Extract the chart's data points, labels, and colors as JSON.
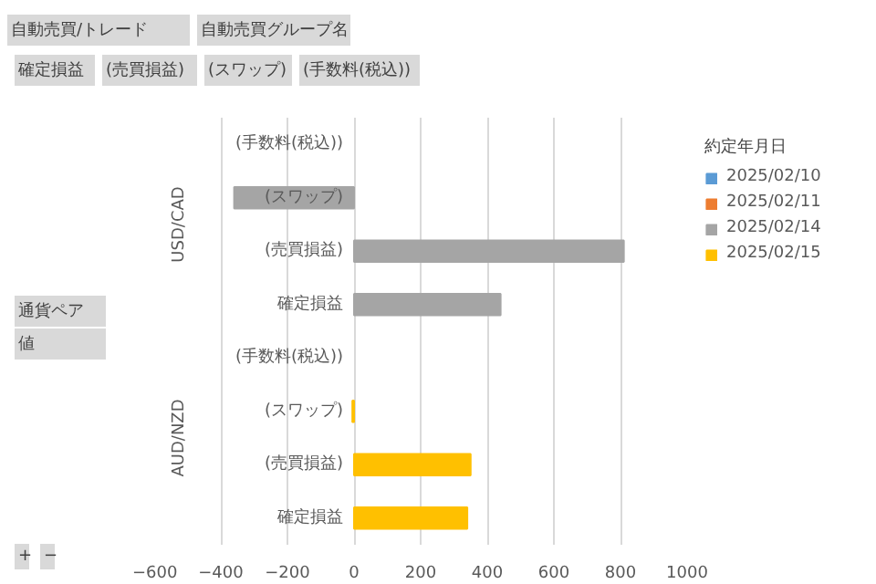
{
  "chart_data": {
    "type": "bar",
    "orientation": "horizontal",
    "stacked": true,
    "categories": [
      "(手数料(税込))",
      "(スワップ)",
      "(売買損益)",
      "確定損益",
      "(手数料(税込))",
      "(スワップ)",
      "(売買損益)",
      "確定損益"
    ],
    "series": [
      {
        "name": "2025/02/10",
        "color": "#5b9bd5",
        "values": [
          null,
          null,
          null,
          null,
          null,
          null,
          null,
          null
        ]
      },
      {
        "name": "2025/02/11",
        "color": "#ed7d31",
        "values": [
          null,
          null,
          null,
          null,
          null,
          null,
          null,
          null
        ]
      },
      {
        "name": "2025/02/14",
        "color": "#a5a5a5",
        "values": [
          null,
          -360,
          810,
          440,
          null,
          null,
          null,
          null
        ]
      },
      {
        "name": "2025/02/15",
        "color": "#ffc000",
        "values": [
          null,
          null,
          null,
          null,
          null,
          -5,
          350,
          340
        ]
      }
    ],
    "legend_title": "約定年月日",
    "legend": "top right",
    "xlim": [
      -600,
      1000
    ],
    "xticks": [
      -600,
      -400,
      -200,
      0,
      200,
      400,
      600,
      800,
      1000
    ],
    "grid": "x",
    "annotations": [
      "USD/CAD",
      "AUD/NZD",
      "自動売買/トレード",
      "自動売買グループ名",
      "確定損益",
      "(売買損益)",
      "(スワップ)",
      "(手数料(税込))",
      "通貨ペア",
      "値",
      "+",
      "−"
    ]
  }
}
